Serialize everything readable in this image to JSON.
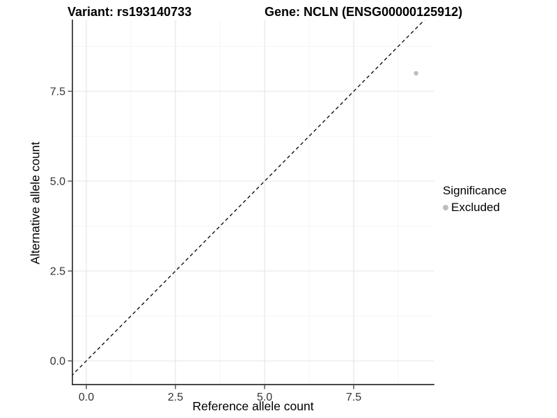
{
  "chart_data": {
    "type": "scatter",
    "titles": {
      "variant": "Variant: rs193140733",
      "gene": "Gene: NCLN (ENSG00000125912)"
    },
    "xlabel": "Reference allele count",
    "ylabel": "Alternative allele count",
    "x_axis": {
      "major_values": [
        0,
        2.5,
        5,
        7.5
      ],
      "major_labels": [
        "0.0",
        "2.5",
        "5.0",
        "7.5"
      ],
      "minor_values": [
        1.25,
        3.75,
        6.25,
        8.75
      ],
      "range": [
        -0.39,
        9.75
      ]
    },
    "y_axis": {
      "major_values": [
        0,
        2.5,
        5,
        7.5
      ],
      "major_labels": [
        "0.0",
        "2.5",
        "5.0",
        "7.5"
      ],
      "minor_values": [
        1.25,
        3.75,
        6.25,
        8.75
      ],
      "range": [
        -0.66,
        9.48
      ]
    },
    "grid": "major+minor",
    "reference_line": {
      "type": "identity",
      "slope": 1,
      "intercept": 0,
      "style": "dashed",
      "color": "#000000"
    },
    "series": [
      {
        "name": "Excluded",
        "color": "#bdbdbd",
        "points": [
          {
            "x": 9.25,
            "y": 8.0
          }
        ]
      }
    ],
    "legend": {
      "position": "right",
      "title": "Significance",
      "entries": [
        {
          "label": "Excluded",
          "color": "#bdbdbd"
        }
      ]
    }
  },
  "colors": {
    "background": "#ffffff",
    "grid_major": "#e4e4e4",
    "grid_minor": "#f2f2f2",
    "axis": "#2e2e2e",
    "tick_text": "#333333",
    "point": "#bdbdbd",
    "reference_line": "#000000"
  }
}
